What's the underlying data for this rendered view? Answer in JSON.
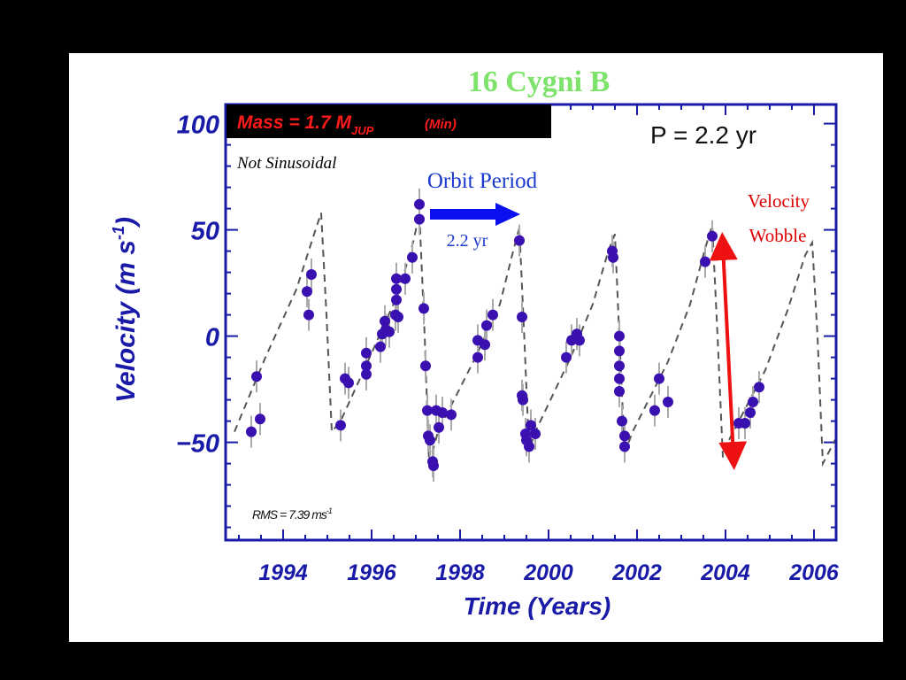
{
  "slide": {
    "title": "16 Cygni B",
    "mass_label": "Mass = 1.7 M",
    "mass_sub": "JUP",
    "mass_min": "(Min)",
    "not_sinusoidal": "Not  Sinusoidal",
    "orbit_period": "Orbit Period",
    "orbit_period_value": "2.2 yr",
    "velocity_wobble_1": "Velocity",
    "velocity_wobble_2": "Wobble",
    "period_label": "P = 2.2 yr",
    "rms_label": "RMS = 7.39 ms",
    "rms_exp": "-1"
  },
  "colors": {
    "title": "#7ee36a",
    "axis": "#1a1aa8",
    "points": "#3a10b0",
    "mass_text": "#ff1a1a",
    "arrow_blue": "#0a10ee",
    "arrow_red": "#ee1111",
    "wobble_text": "#dd0000"
  },
  "chart_data": {
    "type": "scatter",
    "title": "16 Cygni B",
    "xlabel": "Time  (Years)",
    "ylabel": "Velocity  (m s",
    "ylabel_exp": "-1",
    "ylabel_close": ")",
    "xlim": [
      1992.7,
      2006.5
    ],
    "ylim": [
      -96,
      109
    ],
    "xticks": [
      1994,
      1996,
      1998,
      2000,
      2002,
      2004,
      2006
    ],
    "xtick_labels": [
      "1994",
      "1996",
      "1998",
      "2000",
      "2002",
      "2004",
      "2006"
    ],
    "yticks": [
      100,
      50,
      0,
      -50
    ],
    "ytick_labels": [
      "100",
      "50",
      "0",
      "−50"
    ],
    "grid": false,
    "series": [
      {
        "name": "observations",
        "style": "points-with-errorbars",
        "points": [
          [
            1993.28,
            -45
          ],
          [
            1993.48,
            -39
          ],
          [
            1993.4,
            -19
          ],
          [
            1994.54,
            21
          ],
          [
            1994.64,
            29
          ],
          [
            1994.58,
            10
          ],
          [
            1995.3,
            -42
          ],
          [
            1995.4,
            -20
          ],
          [
            1995.48,
            -22
          ],
          [
            1995.88,
            -8
          ],
          [
            1995.88,
            -14
          ],
          [
            1995.88,
            -18
          ],
          [
            1996.2,
            -5
          ],
          [
            1996.24,
            1
          ],
          [
            1996.3,
            7
          ],
          [
            1996.32,
            3
          ],
          [
            1996.4,
            2
          ],
          [
            1996.54,
            10
          ],
          [
            1996.56,
            17
          ],
          [
            1996.56,
            22
          ],
          [
            1996.56,
            27
          ],
          [
            1996.6,
            9
          ],
          [
            1996.76,
            27
          ],
          [
            1996.92,
            37
          ],
          [
            1997.08,
            62
          ],
          [
            1997.08,
            55
          ],
          [
            1997.18,
            13
          ],
          [
            1997.22,
            -14
          ],
          [
            1997.26,
            -35
          ],
          [
            1997.28,
            -47
          ],
          [
            1997.32,
            -49
          ],
          [
            1997.38,
            -59
          ],
          [
            1997.4,
            -61
          ],
          [
            1997.46,
            -35
          ],
          [
            1997.52,
            -43
          ],
          [
            1997.6,
            -36
          ],
          [
            1997.8,
            -37
          ],
          [
            1998.4,
            -10
          ],
          [
            1998.4,
            -2
          ],
          [
            1998.56,
            -4
          ],
          [
            1998.6,
            5
          ],
          [
            1998.74,
            10
          ],
          [
            1999.34,
            45
          ],
          [
            1999.4,
            9
          ],
          [
            1999.4,
            -28
          ],
          [
            1999.42,
            -30
          ],
          [
            1999.48,
            -46
          ],
          [
            1999.5,
            -49
          ],
          [
            1999.56,
            -52
          ],
          [
            1999.6,
            -42
          ],
          [
            1999.7,
            -46
          ],
          [
            2000.4,
            -10
          ],
          [
            2000.52,
            -2
          ],
          [
            2000.64,
            1
          ],
          [
            2000.7,
            -2
          ],
          [
            2001.44,
            40
          ],
          [
            2001.46,
            37
          ],
          [
            2001.6,
            0
          ],
          [
            2001.6,
            -7
          ],
          [
            2001.6,
            -14
          ],
          [
            2001.6,
            -20
          ],
          [
            2001.6,
            -26
          ],
          [
            2001.66,
            -40
          ],
          [
            2001.72,
            -47
          ],
          [
            2001.72,
            -52
          ],
          [
            2002.4,
            -35
          ],
          [
            2002.5,
            -20
          ],
          [
            2002.7,
            -31
          ],
          [
            2003.54,
            35
          ],
          [
            2003.7,
            47
          ],
          [
            2004.3,
            -41
          ],
          [
            2004.44,
            -41
          ],
          [
            2004.56,
            -36
          ],
          [
            2004.62,
            -31
          ],
          [
            2004.76,
            -24
          ]
        ]
      },
      {
        "name": "orbit model",
        "style": "dashed-line",
        "points": [
          [
            1992.9,
            -45
          ],
          [
            1993.6,
            -10
          ],
          [
            1994.3,
            22
          ],
          [
            1994.7,
            48
          ],
          [
            1994.86,
            58
          ],
          [
            1994.98,
            10
          ],
          [
            1995.1,
            -45
          ],
          [
            1995.3,
            -40
          ],
          [
            1996.0,
            -8
          ],
          [
            1996.6,
            20
          ],
          [
            1996.95,
            45
          ],
          [
            1997.08,
            58
          ],
          [
            1997.2,
            0
          ],
          [
            1997.3,
            -60
          ],
          [
            1997.5,
            -45
          ],
          [
            1998.3,
            -12
          ],
          [
            1998.9,
            15
          ],
          [
            1999.2,
            40
          ],
          [
            1999.34,
            51
          ],
          [
            1999.45,
            0
          ],
          [
            1999.56,
            -54
          ],
          [
            1999.7,
            -45
          ],
          [
            2000.5,
            -10
          ],
          [
            2001.0,
            15
          ],
          [
            2001.35,
            40
          ],
          [
            2001.5,
            48
          ],
          [
            2001.6,
            0
          ],
          [
            2001.72,
            -55
          ],
          [
            2001.9,
            -45
          ],
          [
            2002.7,
            -12
          ],
          [
            2003.2,
            15
          ],
          [
            2003.55,
            42
          ],
          [
            2003.7,
            52
          ],
          [
            2003.82,
            0
          ],
          [
            2003.94,
            -57
          ],
          [
            2004.1,
            -48
          ],
          [
            2004.9,
            -16
          ],
          [
            2005.4,
            12
          ],
          [
            2005.8,
            38
          ],
          [
            2005.96,
            44
          ],
          [
            2006.08,
            0
          ],
          [
            2006.2,
            -60
          ],
          [
            2006.5,
            -48
          ]
        ]
      }
    ],
    "annotations": [
      "Mass = 1.7 MJUP (Min)",
      "Not Sinusoidal",
      "Orbit Period",
      "2.2 yr",
      "P = 2.2 yr",
      "Velocity Wobble",
      "RMS = 7.39 ms-1"
    ]
  }
}
